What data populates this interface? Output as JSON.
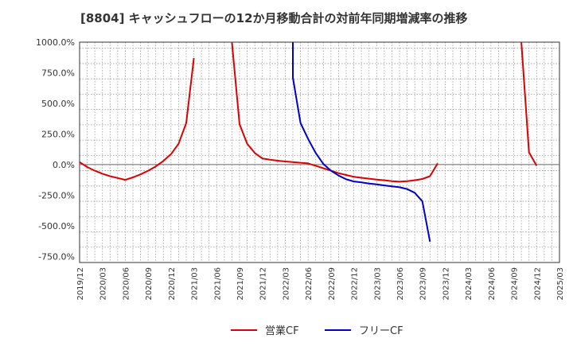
{
  "chart_data": {
    "type": "line",
    "title": "[8804]  キャッシュフローの12か月移動合計の対前年同期増減率の推移",
    "xlabel": "",
    "ylabel": "",
    "ylim": [
      -800,
      1000
    ],
    "x_range": [
      "2019/12",
      "2025/03"
    ],
    "grid": true,
    "y_ticks": [
      {
        "value": 1000,
        "label": "1000.0%"
      },
      {
        "value": 750,
        "label": "750.0%"
      },
      {
        "value": 500,
        "label": "500.0%"
      },
      {
        "value": 250,
        "label": "250.0%"
      },
      {
        "value": 0,
        "label": "0.0%"
      },
      {
        "value": -250,
        "label": "-250.0%"
      },
      {
        "value": -500,
        "label": "-500.0%"
      },
      {
        "value": -750,
        "label": "-750.0%"
      }
    ],
    "x_ticks": [
      "2019/12",
      "2020/03",
      "2020/06",
      "2020/09",
      "2020/12",
      "2021/03",
      "2021/06",
      "2021/09",
      "2021/12",
      "2022/03",
      "2022/06",
      "2022/09",
      "2022/12",
      "2023/03",
      "2023/06",
      "2023/09",
      "2023/12",
      "2024/03",
      "2024/06",
      "2024/09",
      "2024/12",
      "2025/03"
    ],
    "series": [
      {
        "name": "営業CF",
        "color": "#dd0000",
        "segments": [
          [
            {
              "x": "2019/12",
              "y": 20
            },
            {
              "x": "2020/01",
              "y": -20
            },
            {
              "x": "2020/02",
              "y": -50
            },
            {
              "x": "2020/03",
              "y": -75
            },
            {
              "x": "2020/04",
              "y": -95
            },
            {
              "x": "2020/05",
              "y": -110
            },
            {
              "x": "2020/06",
              "y": -125
            },
            {
              "x": "2020/07",
              "y": -105
            },
            {
              "x": "2020/08",
              "y": -80
            },
            {
              "x": "2020/09",
              "y": -50
            },
            {
              "x": "2020/10",
              "y": -15
            },
            {
              "x": "2020/11",
              "y": 30
            },
            {
              "x": "2020/12",
              "y": 85
            },
            {
              "x": "2021/01",
              "y": 170
            },
            {
              "x": "2021/02",
              "y": 340
            },
            {
              "x": "2021/03",
              "y": 870
            }
          ],
          [
            {
              "x": "2021/08",
              "y": 1000
            },
            {
              "x": "2021/09",
              "y": 330
            },
            {
              "x": "2021/10",
              "y": 170
            },
            {
              "x": "2021/11",
              "y": 95
            },
            {
              "x": "2021/12",
              "y": 50
            },
            {
              "x": "2022/01",
              "y": 40
            },
            {
              "x": "2022/02",
              "y": 32
            },
            {
              "x": "2022/03",
              "y": 25
            },
            {
              "x": "2022/04",
              "y": 20
            },
            {
              "x": "2022/05",
              "y": 15
            },
            {
              "x": "2022/06",
              "y": 10
            },
            {
              "x": "2022/07",
              "y": -10
            },
            {
              "x": "2022/08",
              "y": -30
            },
            {
              "x": "2022/09",
              "y": -50
            },
            {
              "x": "2022/10",
              "y": -70
            },
            {
              "x": "2022/11",
              "y": -85
            },
            {
              "x": "2022/12",
              "y": -100
            },
            {
              "x": "2023/01",
              "y": -108
            },
            {
              "x": "2023/02",
              "y": -115
            },
            {
              "x": "2023/03",
              "y": -122
            },
            {
              "x": "2023/04",
              "y": -128
            },
            {
              "x": "2023/05",
              "y": -135
            },
            {
              "x": "2023/06",
              "y": -140
            },
            {
              "x": "2023/07",
              "y": -135
            },
            {
              "x": "2023/08",
              "y": -128
            },
            {
              "x": "2023/09",
              "y": -118
            },
            {
              "x": "2023/10",
              "y": -95
            },
            {
              "x": "2023/11",
              "y": 10
            }
          ],
          [
            {
              "x": "2024/10",
              "y": 1000
            },
            {
              "x": "2024/11",
              "y": 100
            },
            {
              "x": "2024/12",
              "y": -10
            }
          ]
        ]
      },
      {
        "name": "フリーCF",
        "color": "#0000cc",
        "segments": [
          [
            {
              "x": "2022/04",
              "y": 1000
            },
            {
              "x": "2022/04",
              "y": 710
            },
            {
              "x": "2022/05",
              "y": 340
            },
            {
              "x": "2022/06",
              "y": 210
            },
            {
              "x": "2022/07",
              "y": 95
            },
            {
              "x": "2022/08",
              "y": 5
            },
            {
              "x": "2022/09",
              "y": -50
            },
            {
              "x": "2022/10",
              "y": -90
            },
            {
              "x": "2022/11",
              "y": -120
            },
            {
              "x": "2022/12",
              "y": -138
            },
            {
              "x": "2023/01",
              "y": -145
            },
            {
              "x": "2023/02",
              "y": -155
            },
            {
              "x": "2023/03",
              "y": -162
            },
            {
              "x": "2023/04",
              "y": -170
            },
            {
              "x": "2023/05",
              "y": -178
            },
            {
              "x": "2023/06",
              "y": -185
            },
            {
              "x": "2023/07",
              "y": -200
            },
            {
              "x": "2023/08",
              "y": -230
            },
            {
              "x": "2023/09",
              "y": -300
            },
            {
              "x": "2023/10",
              "y": -630
            }
          ]
        ]
      }
    ],
    "legend": {
      "placement": "bottom-center"
    }
  }
}
